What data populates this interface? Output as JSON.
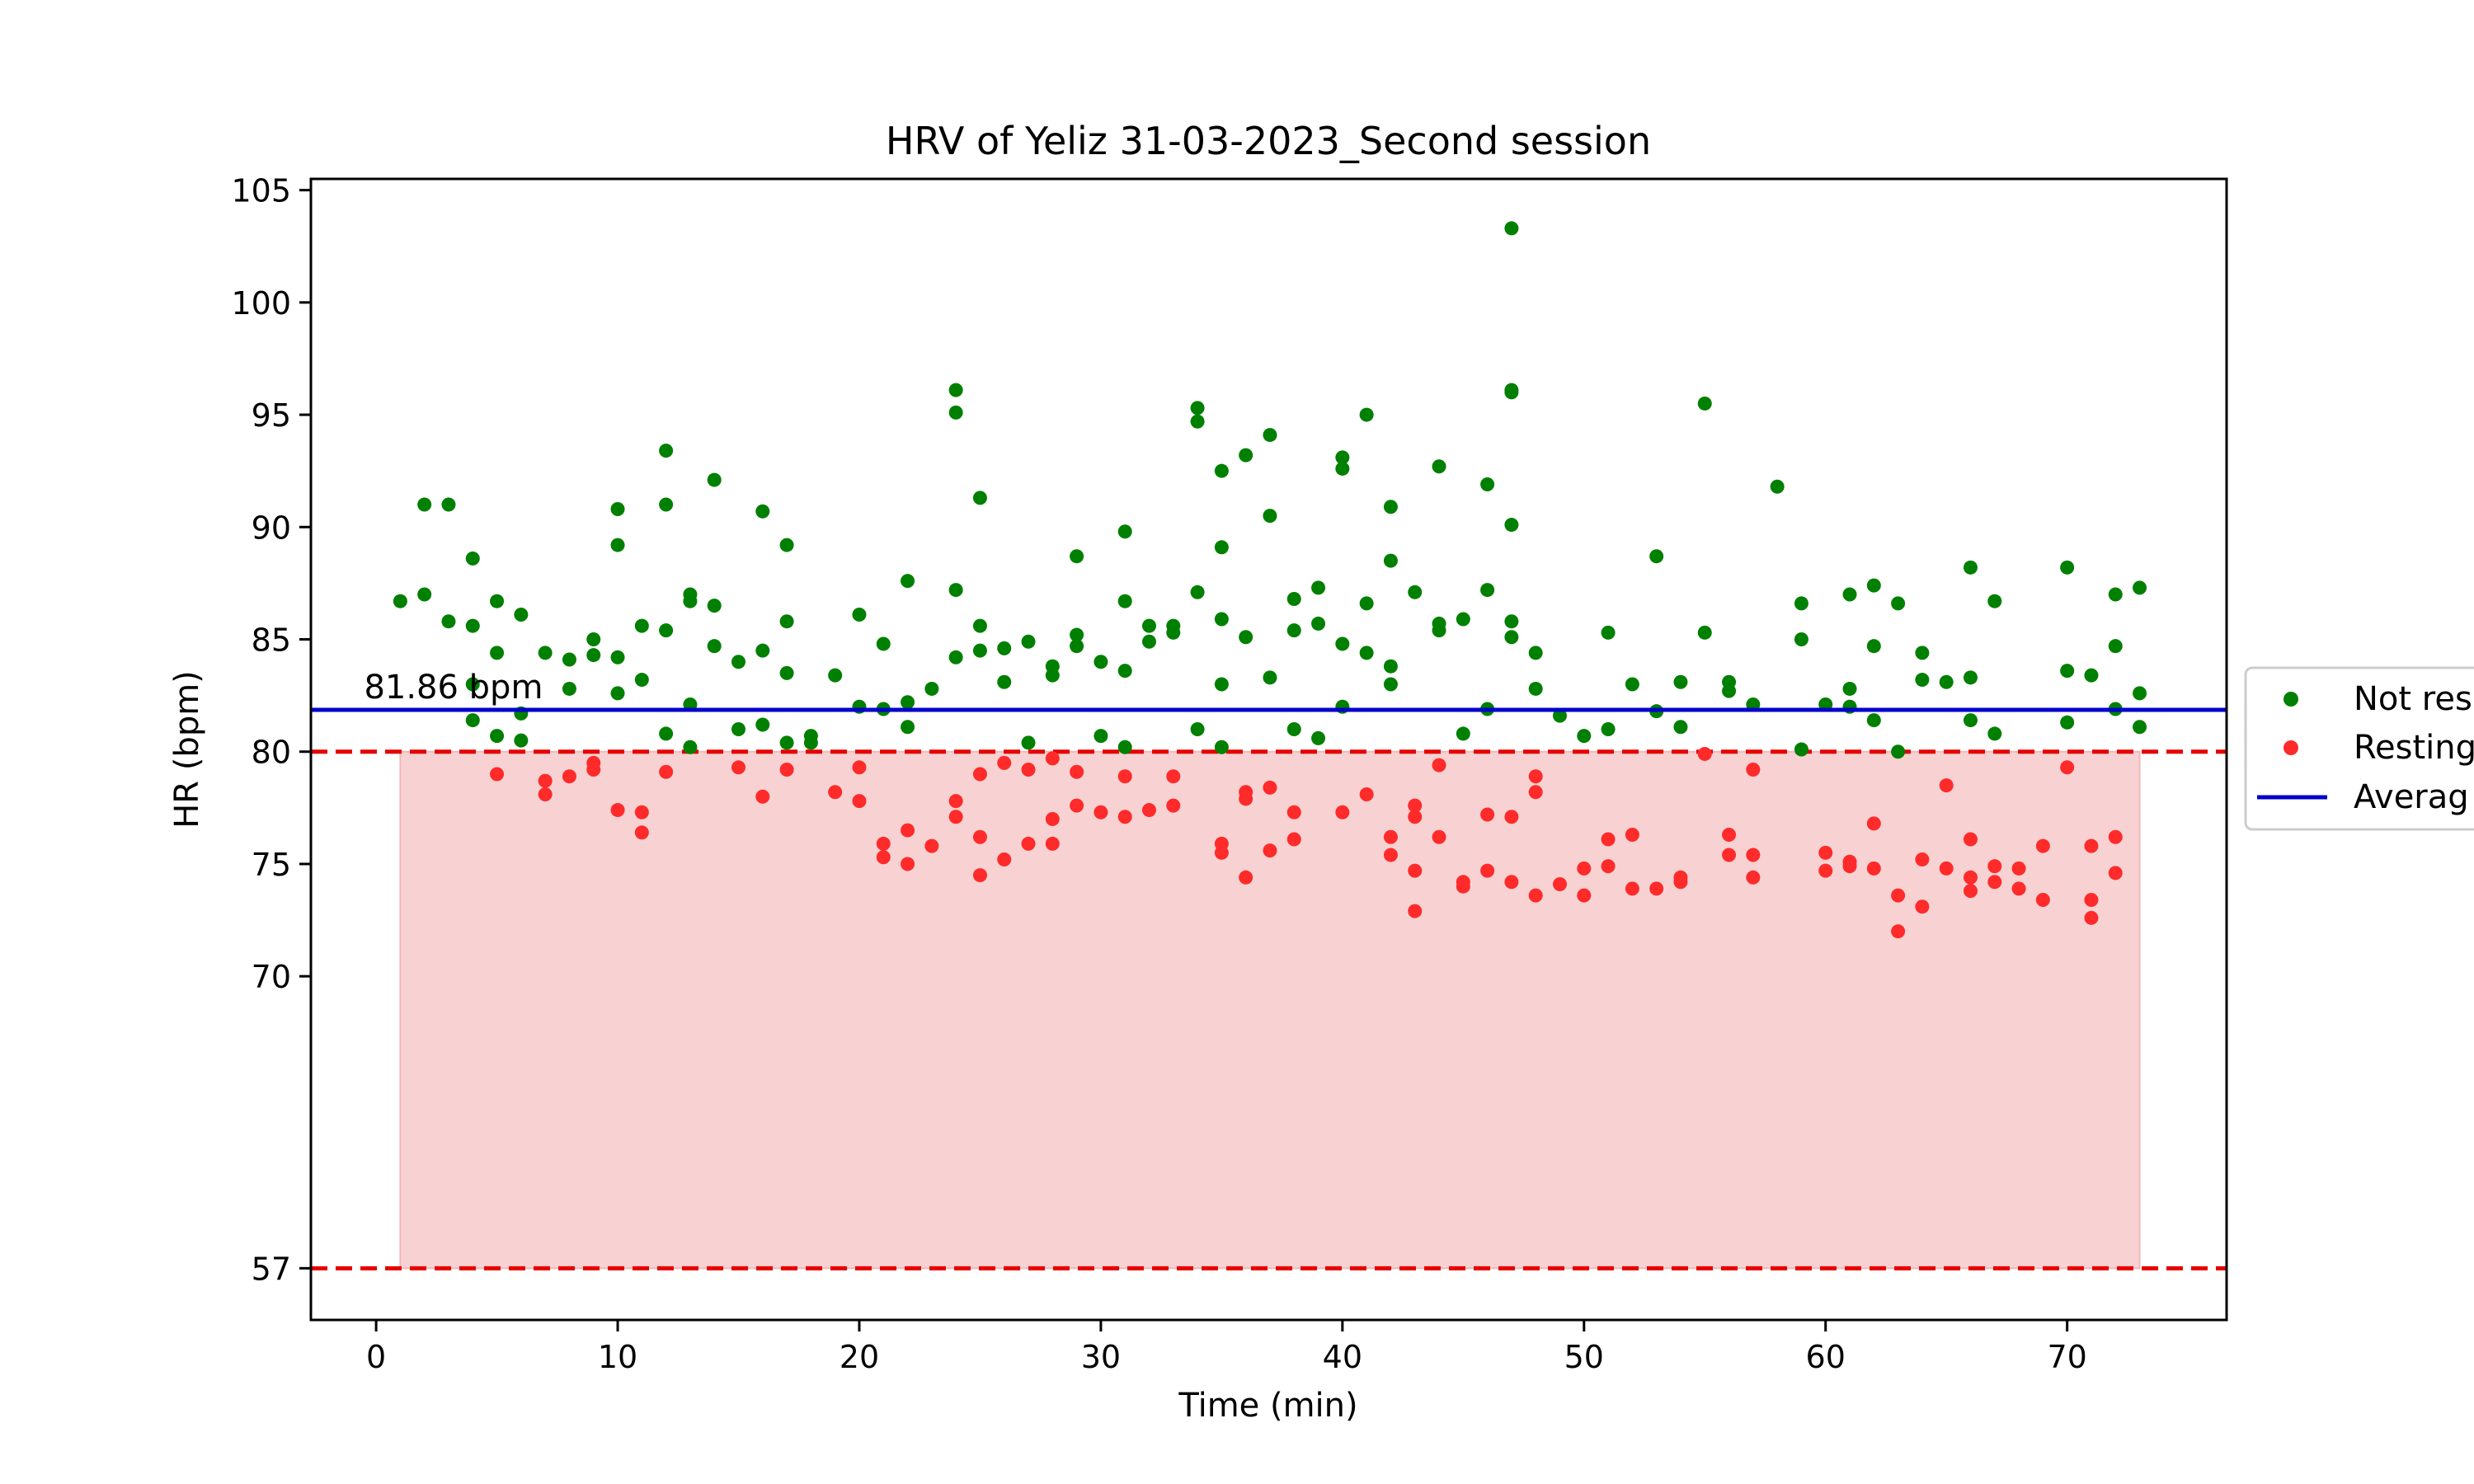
{
  "chart_data": {
    "type": "scatter",
    "title": "HRV of Yeliz 31-03-2023_Second session",
    "xlabel": "Time (min)",
    "ylabel": "HR (bpm)",
    "xlim": [
      -2.7,
      76.6
    ],
    "ylim": [
      54.7,
      105.5
    ],
    "x_ticks": [
      0,
      10,
      20,
      30,
      40,
      50,
      60,
      70
    ],
    "y_ticks": [
      57,
      70,
      75,
      80,
      85,
      90,
      95,
      100,
      105
    ],
    "grid": false,
    "legend": {
      "placement": "right, outside plot (clipped)",
      "entries": [
        "Not res",
        "Resting",
        "Averag"
      ]
    },
    "resting_band": {
      "lower": 57,
      "upper": 80,
      "x_start": 1,
      "x_end": 73
    },
    "average": {
      "value": 81.86,
      "label": "81.86 bpm"
    },
    "colors": {
      "not_resting": "#008000",
      "resting": "#ff2a2a",
      "average": "#0000cc",
      "threshold": "#e60000",
      "band": "#f8d2d2"
    },
    "series": [
      {
        "name": "Not res",
        "points": [
          [
            1,
            86.7
          ],
          [
            2,
            91.0
          ],
          [
            2,
            87.0
          ],
          [
            3,
            91.0
          ],
          [
            3,
            85.8
          ],
          [
            4,
            88.6
          ],
          [
            4,
            85.6
          ],
          [
            4,
            83.0
          ],
          [
            4,
            81.4
          ],
          [
            5,
            86.7
          ],
          [
            5,
            84.4
          ],
          [
            5,
            80.7
          ],
          [
            6,
            86.1
          ],
          [
            6,
            81.7
          ],
          [
            6,
            80.5
          ],
          [
            7,
            84.4
          ],
          [
            8,
            84.1
          ],
          [
            8,
            82.8
          ],
          [
            9,
            85.0
          ],
          [
            9,
            84.3
          ],
          [
            10,
            90.8
          ],
          [
            10,
            89.2
          ],
          [
            10,
            84.2
          ],
          [
            10,
            82.6
          ],
          [
            11,
            85.6
          ],
          [
            11,
            83.2
          ],
          [
            12,
            93.4
          ],
          [
            12,
            91.0
          ],
          [
            12,
            85.4
          ],
          [
            12,
            80.8
          ],
          [
            13,
            87.0
          ],
          [
            13,
            86.7
          ],
          [
            13,
            82.1
          ],
          [
            13,
            80.2
          ],
          [
            14,
            92.1
          ],
          [
            14,
            86.5
          ],
          [
            14,
            84.7
          ],
          [
            15,
            84.0
          ],
          [
            15,
            81.0
          ],
          [
            16,
            90.7
          ],
          [
            16,
            84.5
          ],
          [
            16,
            81.2
          ],
          [
            17,
            89.2
          ],
          [
            17,
            85.8
          ],
          [
            17,
            83.5
          ],
          [
            17,
            80.4
          ],
          [
            18,
            80.7
          ],
          [
            18,
            80.4
          ],
          [
            19,
            83.4
          ],
          [
            20,
            86.1
          ],
          [
            20,
            82.0
          ],
          [
            21,
            84.8
          ],
          [
            21,
            81.9
          ],
          [
            22,
            87.6
          ],
          [
            22,
            82.2
          ],
          [
            22,
            81.1
          ],
          [
            23,
            82.8
          ],
          [
            24,
            96.1
          ],
          [
            24,
            95.1
          ],
          [
            24,
            87.2
          ],
          [
            24,
            84.2
          ],
          [
            25,
            91.3
          ],
          [
            25,
            85.6
          ],
          [
            25,
            84.5
          ],
          [
            26,
            84.6
          ],
          [
            26,
            83.1
          ],
          [
            27,
            84.9
          ],
          [
            27,
            80.4
          ],
          [
            28,
            83.8
          ],
          [
            28,
            83.4
          ],
          [
            29,
            88.7
          ],
          [
            29,
            85.2
          ],
          [
            29,
            84.7
          ],
          [
            30,
            84.0
          ],
          [
            30,
            80.7
          ],
          [
            31,
            89.8
          ],
          [
            31,
            86.7
          ],
          [
            31,
            83.6
          ],
          [
            31,
            80.2
          ],
          [
            32,
            85.6
          ],
          [
            32,
            84.9
          ],
          [
            33,
            85.6
          ],
          [
            33,
            85.3
          ],
          [
            34,
            95.3
          ],
          [
            34,
            94.7
          ],
          [
            34,
            87.1
          ],
          [
            34,
            81.0
          ],
          [
            35,
            92.5
          ],
          [
            35,
            89.1
          ],
          [
            35,
            85.9
          ],
          [
            35,
            83.0
          ],
          [
            35,
            80.2
          ],
          [
            36,
            93.2
          ],
          [
            36,
            85.1
          ],
          [
            37,
            94.1
          ],
          [
            37,
            90.5
          ],
          [
            37,
            83.3
          ],
          [
            38,
            86.8
          ],
          [
            38,
            85.4
          ],
          [
            38,
            81.0
          ],
          [
            39,
            87.3
          ],
          [
            39,
            85.7
          ],
          [
            39,
            80.6
          ],
          [
            40,
            93.1
          ],
          [
            40,
            92.6
          ],
          [
            40,
            84.8
          ],
          [
            40,
            82.0
          ],
          [
            41,
            95.0
          ],
          [
            41,
            86.6
          ],
          [
            41,
            84.4
          ],
          [
            42,
            90.9
          ],
          [
            42,
            88.5
          ],
          [
            42,
            83.8
          ],
          [
            42,
            83.0
          ],
          [
            43,
            87.1
          ],
          [
            44,
            92.7
          ],
          [
            44,
            85.7
          ],
          [
            44,
            85.4
          ],
          [
            45,
            85.9
          ],
          [
            45,
            80.8
          ],
          [
            46,
            91.9
          ],
          [
            46,
            87.2
          ],
          [
            46,
            81.9
          ],
          [
            47,
            103.3
          ],
          [
            47,
            96.0
          ],
          [
            47,
            96.1
          ],
          [
            47,
            90.1
          ],
          [
            47,
            85.8
          ],
          [
            47,
            85.1
          ],
          [
            48,
            84.4
          ],
          [
            48,
            82.8
          ],
          [
            49,
            81.6
          ],
          [
            50,
            80.7
          ],
          [
            51,
            85.3
          ],
          [
            51,
            81.0
          ],
          [
            52,
            83.0
          ],
          [
            53,
            88.7
          ],
          [
            53,
            81.8
          ],
          [
            54,
            83.1
          ],
          [
            54,
            81.1
          ],
          [
            55,
            95.5
          ],
          [
            55,
            85.3
          ],
          [
            56,
            83.1
          ],
          [
            56,
            82.7
          ],
          [
            57,
            82.1
          ],
          [
            58,
            91.8
          ],
          [
            59,
            86.6
          ],
          [
            59,
            85.0
          ],
          [
            59,
            80.1
          ],
          [
            60,
            82.1
          ],
          [
            61,
            87.0
          ],
          [
            61,
            82.8
          ],
          [
            61,
            82.0
          ],
          [
            62,
            87.4
          ],
          [
            62,
            84.7
          ],
          [
            62,
            81.4
          ],
          [
            63,
            86.6
          ],
          [
            63,
            80.0
          ],
          [
            64,
            84.4
          ],
          [
            64,
            83.2
          ],
          [
            65,
            83.1
          ],
          [
            66,
            88.2
          ],
          [
            66,
            83.3
          ],
          [
            66,
            81.4
          ],
          [
            67,
            86.7
          ],
          [
            67,
            80.8
          ],
          [
            70,
            88.2
          ],
          [
            70,
            83.6
          ],
          [
            70,
            81.3
          ],
          [
            71,
            83.4
          ],
          [
            72,
            87.0
          ],
          [
            72,
            84.7
          ],
          [
            72,
            81.9
          ],
          [
            73,
            87.3
          ],
          [
            73,
            82.6
          ],
          [
            73,
            81.1
          ]
        ]
      },
      {
        "name": "Resting",
        "points": [
          [
            5,
            79.0
          ],
          [
            7,
            78.7
          ],
          [
            7,
            78.1
          ],
          [
            8,
            78.9
          ],
          [
            9,
            79.5
          ],
          [
            9,
            79.2
          ],
          [
            10,
            77.4
          ],
          [
            11,
            77.3
          ],
          [
            11,
            76.4
          ],
          [
            12,
            79.1
          ],
          [
            15,
            79.3
          ],
          [
            16,
            78.0
          ],
          [
            17,
            79.2
          ],
          [
            19,
            78.2
          ],
          [
            20,
            79.3
          ],
          [
            20,
            77.8
          ],
          [
            21,
            75.9
          ],
          [
            21,
            75.3
          ],
          [
            22,
            76.5
          ],
          [
            22,
            75.0
          ],
          [
            23,
            75.8
          ],
          [
            24,
            77.8
          ],
          [
            24,
            77.1
          ],
          [
            25,
            79.0
          ],
          [
            25,
            76.2
          ],
          [
            25,
            74.5
          ],
          [
            26,
            79.5
          ],
          [
            26,
            75.2
          ],
          [
            27,
            79.2
          ],
          [
            27,
            75.9
          ],
          [
            28,
            79.7
          ],
          [
            28,
            77.0
          ],
          [
            28,
            75.9
          ],
          [
            29,
            79.1
          ],
          [
            29,
            77.6
          ],
          [
            30,
            77.3
          ],
          [
            31,
            78.9
          ],
          [
            31,
            77.1
          ],
          [
            32,
            77.4
          ],
          [
            33,
            78.9
          ],
          [
            33,
            77.6
          ],
          [
            35,
            75.9
          ],
          [
            35,
            75.5
          ],
          [
            36,
            78.2
          ],
          [
            36,
            77.9
          ],
          [
            36,
            74.4
          ],
          [
            37,
            78.4
          ],
          [
            37,
            75.6
          ],
          [
            38,
            77.3
          ],
          [
            38,
            76.1
          ],
          [
            40,
            77.3
          ],
          [
            41,
            78.1
          ],
          [
            42,
            76.2
          ],
          [
            42,
            75.4
          ],
          [
            43,
            77.6
          ],
          [
            43,
            77.1
          ],
          [
            43,
            74.7
          ],
          [
            43,
            72.9
          ],
          [
            44,
            79.4
          ],
          [
            44,
            76.2
          ],
          [
            45,
            74.2
          ],
          [
            45,
            74.0
          ],
          [
            46,
            77.2
          ],
          [
            46,
            74.7
          ],
          [
            47,
            77.1
          ],
          [
            47,
            74.2
          ],
          [
            48,
            78.9
          ],
          [
            48,
            78.2
          ],
          [
            48,
            73.6
          ],
          [
            49,
            74.1
          ],
          [
            50,
            74.8
          ],
          [
            50,
            73.6
          ],
          [
            51,
            76.1
          ],
          [
            51,
            74.9
          ],
          [
            52,
            76.3
          ],
          [
            52,
            73.9
          ],
          [
            53,
            73.9
          ],
          [
            54,
            74.4
          ],
          [
            54,
            74.2
          ],
          [
            55,
            79.9
          ],
          [
            56,
            76.3
          ],
          [
            56,
            75.4
          ],
          [
            57,
            79.2
          ],
          [
            57,
            75.4
          ],
          [
            57,
            74.4
          ],
          [
            60,
            75.5
          ],
          [
            60,
            74.7
          ],
          [
            61,
            75.1
          ],
          [
            61,
            74.9
          ],
          [
            62,
            76.8
          ],
          [
            62,
            74.8
          ],
          [
            63,
            73.6
          ],
          [
            63,
            72.0
          ],
          [
            64,
            75.2
          ],
          [
            64,
            73.1
          ],
          [
            65,
            78.5
          ],
          [
            65,
            74.8
          ],
          [
            66,
            76.1
          ],
          [
            66,
            74.4
          ],
          [
            66,
            73.8
          ],
          [
            67,
            74.9
          ],
          [
            67,
            74.2
          ],
          [
            68,
            74.8
          ],
          [
            68,
            73.9
          ],
          [
            69,
            75.8
          ],
          [
            69,
            73.4
          ],
          [
            70,
            79.3
          ],
          [
            71,
            75.8
          ],
          [
            71,
            73.4
          ],
          [
            71,
            72.6
          ],
          [
            72,
            76.2
          ],
          [
            72,
            74.6
          ]
        ]
      }
    ]
  }
}
